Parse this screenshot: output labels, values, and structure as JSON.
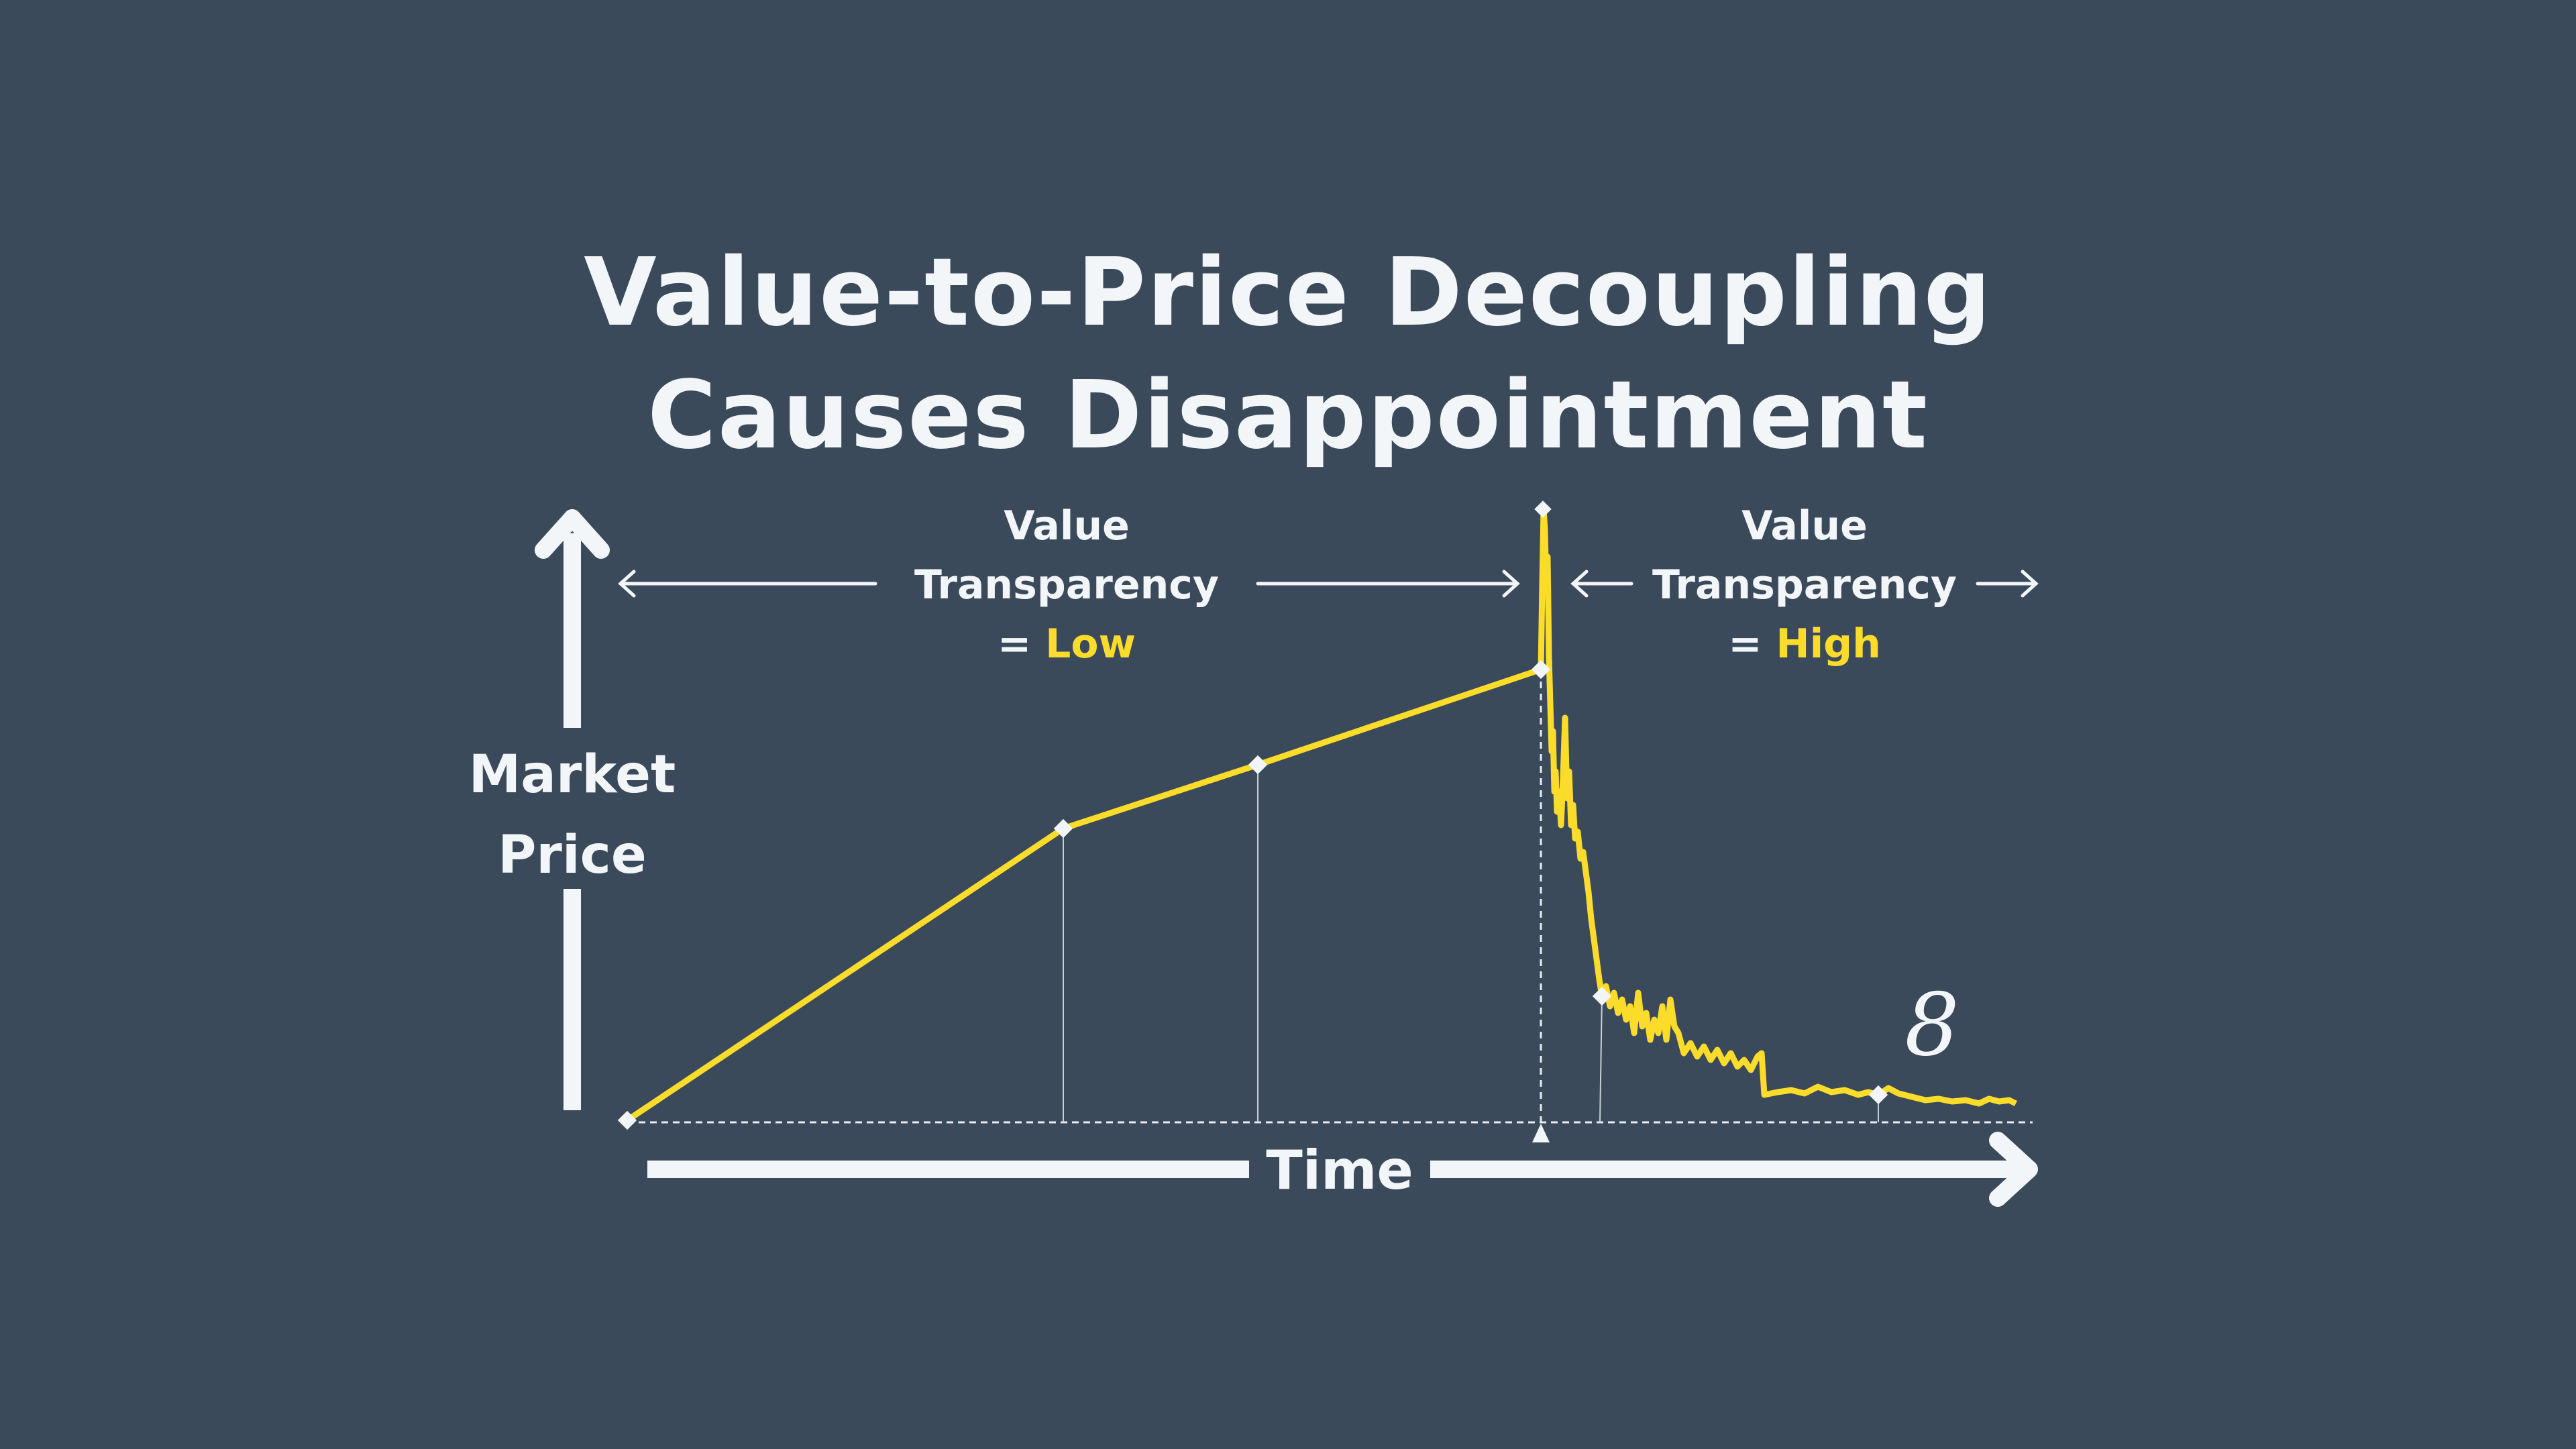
{
  "title": {
    "line1": "Value-to-Price Decoupling",
    "line2": "Causes Disappointment"
  },
  "axes": {
    "y_label_line1": "Market",
    "y_label_line2": "Price",
    "x_label": "Time"
  },
  "regions": {
    "low": {
      "line1": "Value",
      "line2": "Transparency",
      "prefix": "= ",
      "level": "Low"
    },
    "high": {
      "line1": "Value",
      "line2": "Transparency",
      "prefix": "= ",
      "level": "High"
    }
  },
  "logo_glyph": "8",
  "colors": {
    "background": "#3b4a5b",
    "text": "#f3f6f9",
    "line": "#fcdc2a"
  }
}
